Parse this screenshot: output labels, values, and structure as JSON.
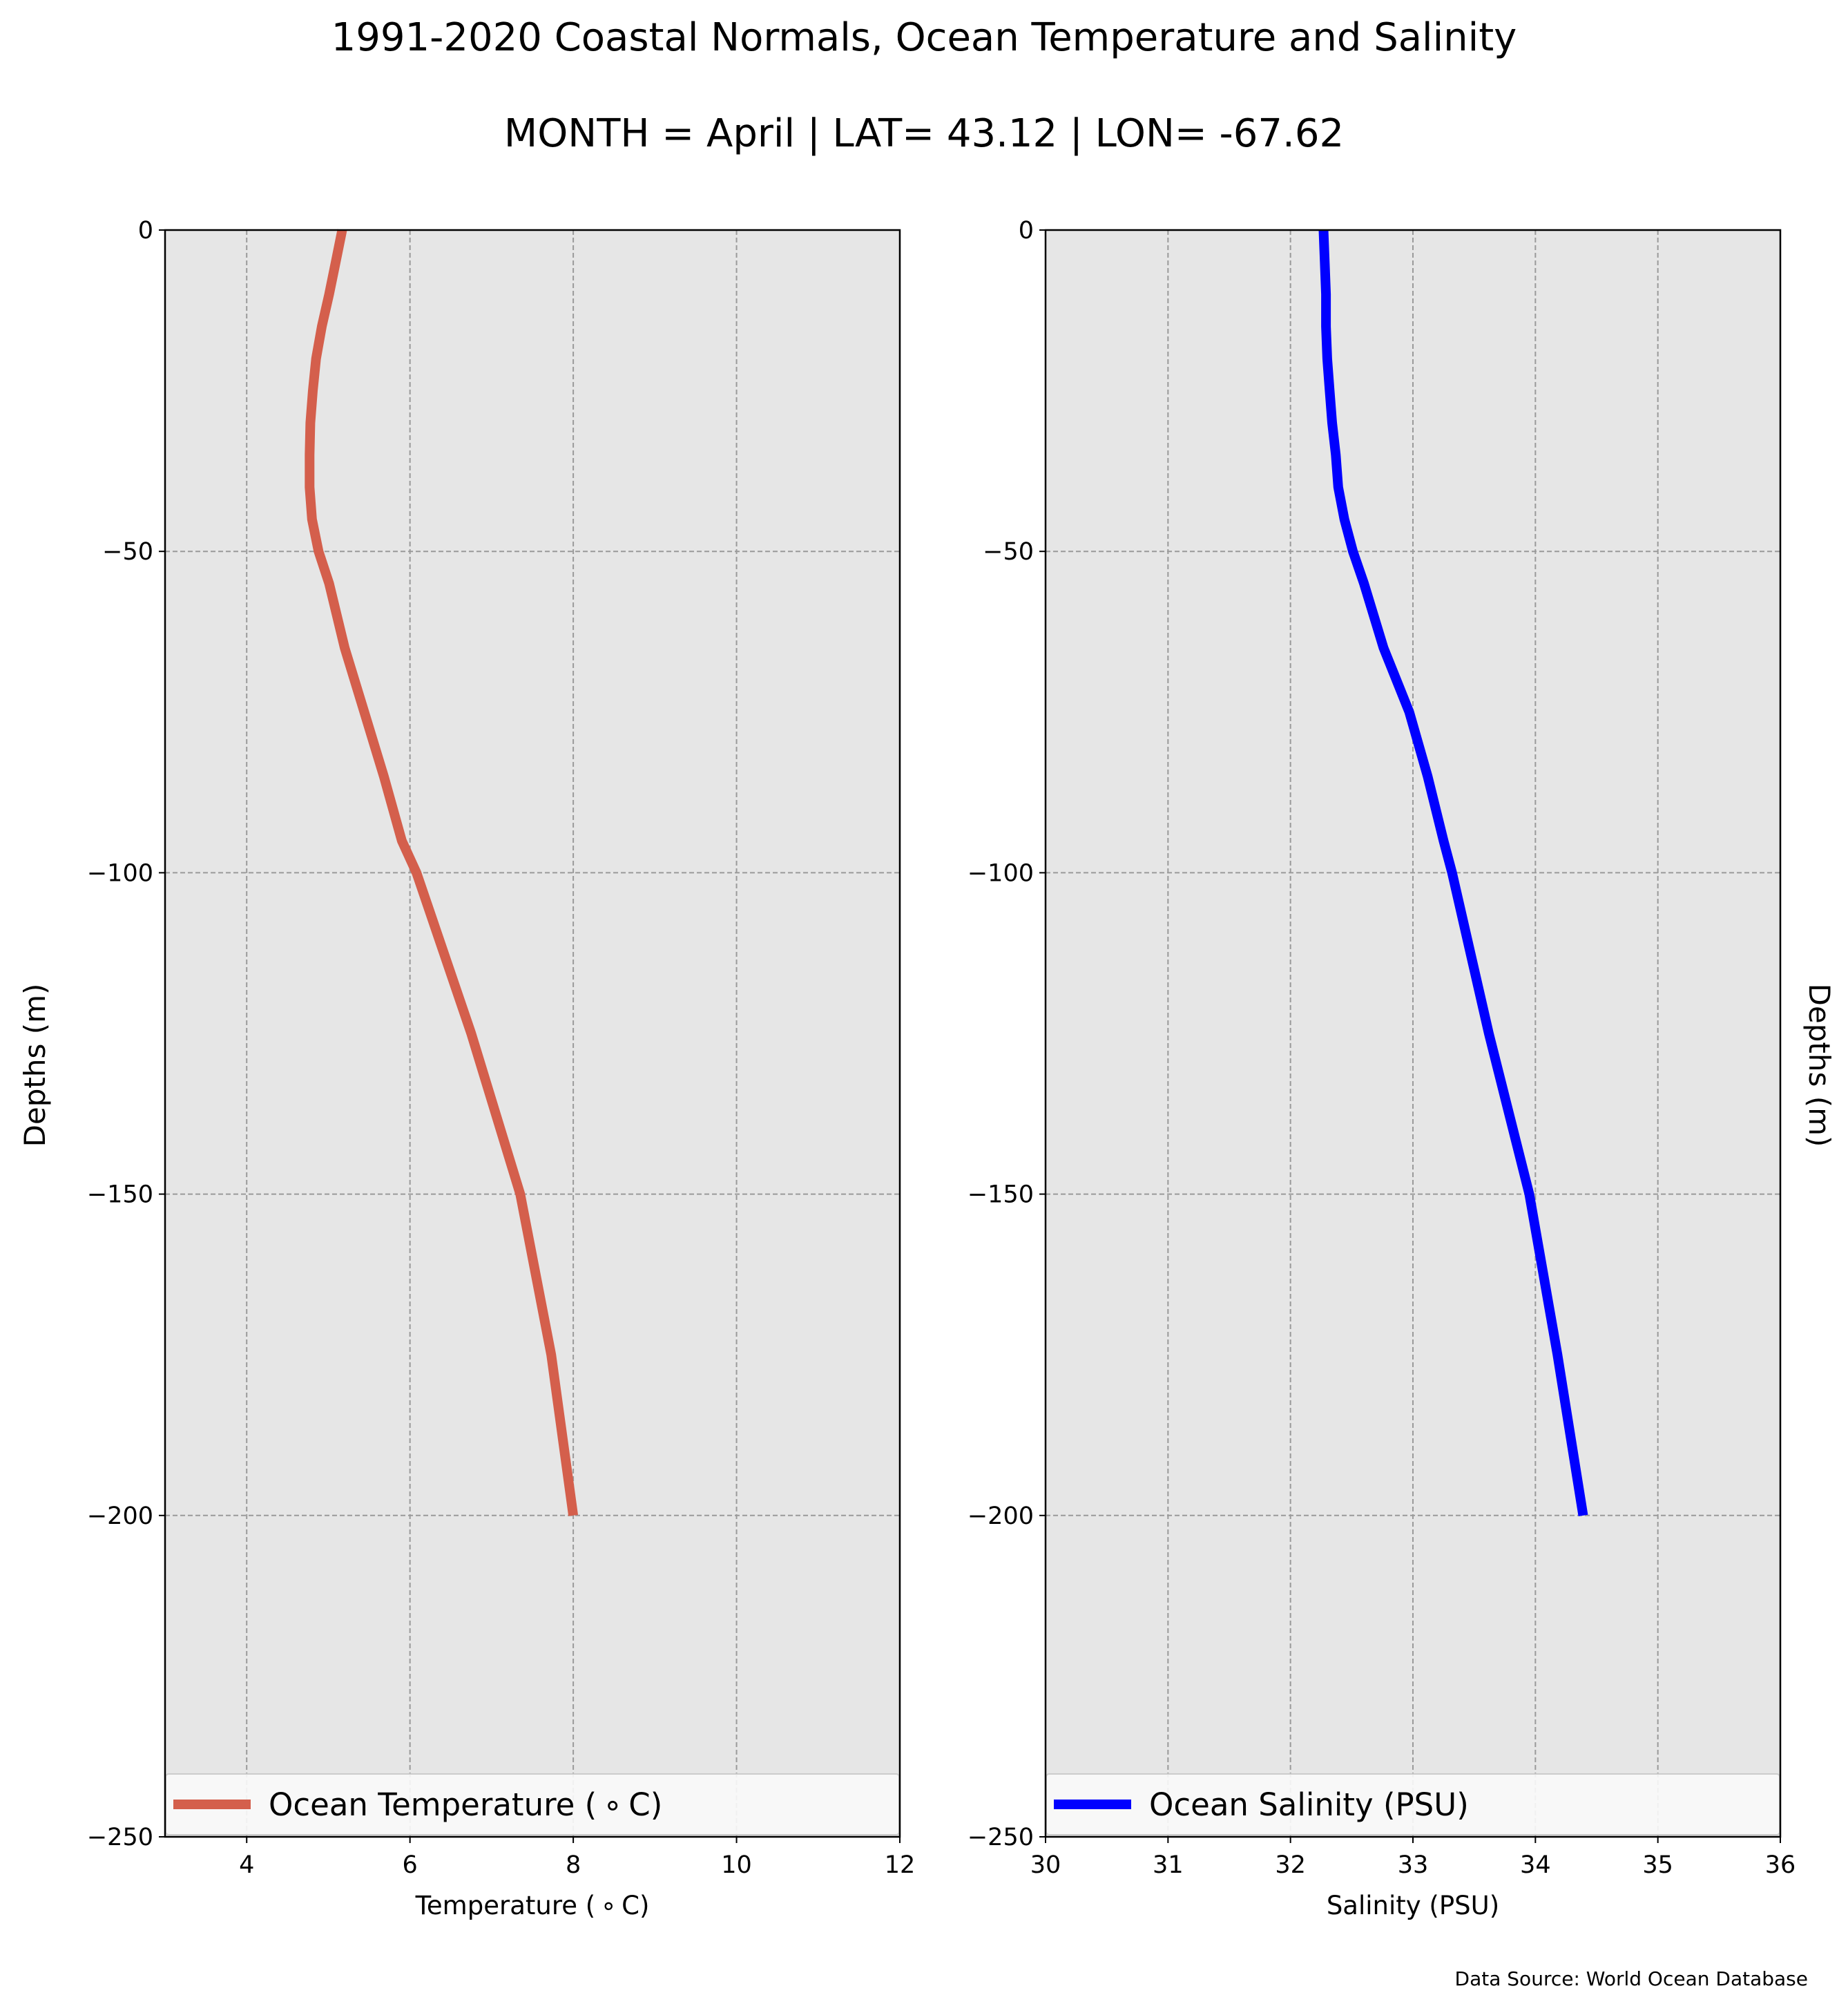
{
  "figure": {
    "title": "1991-2020 Coastal Normals, Ocean Temperature and Salinity",
    "subtitle": "MONTH = April | LAT= 43.12 | LON= -67.62",
    "source": "Data Source: World Ocean Database"
  },
  "chart_data": [
    {
      "type": "line",
      "xlabel": "Temperature ($^\\circ$C)",
      "xlabel_display": "Temperature ( ∘ C)",
      "ylabel": "Depths (m)",
      "xlim": [
        3,
        12
      ],
      "ylim": [
        -250,
        0
      ],
      "xticks": [
        4,
        6,
        8,
        10,
        12
      ],
      "yticks": [
        0,
        -50,
        -100,
        -150,
        -200,
        -250
      ],
      "xtick_labels": [
        "4",
        "6",
        "8",
        "10",
        "12"
      ],
      "ytick_labels": [
        "0",
        "−50",
        "−100",
        "−150",
        "−200",
        "−250"
      ],
      "grid": true,
      "legend_position": "bottom",
      "background": "#e6e6e6",
      "series": [
        {
          "name": "Ocean Temperature ( ∘ C)",
          "color": "#d45f4c",
          "x": [
            5.17,
            5.09,
            5.01,
            4.92,
            4.85,
            4.81,
            4.78,
            4.77,
            4.77,
            4.8,
            4.88,
            5.01,
            5.2,
            5.44,
            5.68,
            5.9,
            6.08,
            6.75,
            7.35,
            7.73,
            8.0
          ],
          "y": [
            0,
            -5,
            -10,
            -15,
            -20,
            -25,
            -30,
            -35,
            -40,
            -45,
            -50,
            -55,
            -65,
            -75,
            -85,
            -95,
            -100,
            -125,
            -150,
            -175,
            -200
          ]
        }
      ]
    },
    {
      "type": "line",
      "xlabel": "Salinity (PSU)",
      "ylabel": "Depths (m)",
      "xlim": [
        30,
        36
      ],
      "ylim": [
        -250,
        0
      ],
      "xticks": [
        30,
        31,
        32,
        33,
        34,
        35,
        36
      ],
      "yticks": [
        0,
        -50,
        -100,
        -150,
        -200,
        -250
      ],
      "xtick_labels": [
        "30",
        "31",
        "32",
        "33",
        "34",
        "35",
        "36"
      ],
      "ytick_labels": [
        "0",
        "−50",
        "−100",
        "−150",
        "−200",
        "−250"
      ],
      "grid": true,
      "legend_position": "bottom",
      "background": "#e6e6e6",
      "series": [
        {
          "name": "Ocean Salinity (PSU)",
          "color": "#0000ff",
          "x": [
            32.27,
            32.28,
            32.29,
            32.29,
            32.3,
            32.32,
            32.34,
            32.37,
            32.39,
            32.44,
            32.51,
            32.6,
            32.76,
            32.97,
            33.12,
            33.25,
            33.32,
            33.62,
            33.95,
            34.18,
            34.39
          ],
          "y": [
            0,
            -5,
            -10,
            -15,
            -20,
            -25,
            -30,
            -35,
            -40,
            -45,
            -50,
            -55,
            -65,
            -75,
            -85,
            -95,
            -100,
            -125,
            -150,
            -175,
            -200
          ]
        }
      ]
    }
  ]
}
